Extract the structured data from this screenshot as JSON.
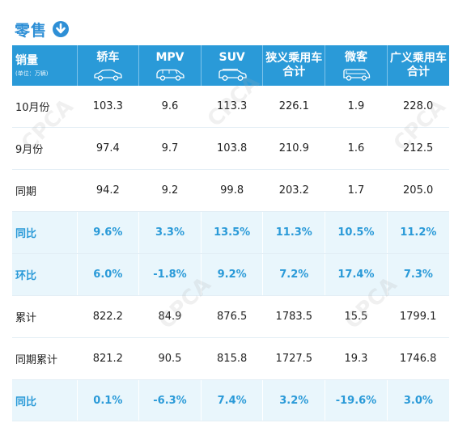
{
  "title": "零售",
  "table": {
    "header": {
      "label_main": "销量",
      "label_sub": "(单位：万辆)",
      "columns": [
        {
          "line1": "轿车",
          "line2": "",
          "icon": "sedan-icon"
        },
        {
          "line1": "MPV",
          "line2": "",
          "icon": "mpv-icon"
        },
        {
          "line1": "SUV",
          "line2": "",
          "icon": "suv-icon"
        },
        {
          "line1": "狭义乘用车",
          "line2": "合计",
          "icon": ""
        },
        {
          "line1": "微客",
          "line2": "",
          "icon": "minivan-icon"
        },
        {
          "line1": "广义乘用车",
          "line2": "合计",
          "icon": ""
        }
      ]
    },
    "rows": [
      {
        "label": "10月份",
        "values": [
          "103.3",
          "9.6",
          "113.3",
          "226.1",
          "1.9",
          "228.0"
        ],
        "highlight": false
      },
      {
        "label": "9月份",
        "values": [
          "97.4",
          "9.7",
          "103.8",
          "210.9",
          "1.6",
          "212.5"
        ],
        "highlight": false
      },
      {
        "label": "同期",
        "values": [
          "94.2",
          "9.2",
          "99.8",
          "203.2",
          "1.7",
          "205.0"
        ],
        "highlight": false
      },
      {
        "label": "同比",
        "values": [
          "9.6%",
          "3.3%",
          "13.5%",
          "11.3%",
          "10.5%",
          "11.2%"
        ],
        "highlight": true
      },
      {
        "label": "环比",
        "values": [
          "6.0%",
          "-1.8%",
          "9.2%",
          "7.2%",
          "17.4%",
          "7.3%"
        ],
        "highlight": true
      },
      {
        "label": "累计",
        "values": [
          "822.2",
          "84.9",
          "876.5",
          "1783.5",
          "15.5",
          "1799.1"
        ],
        "highlight": false
      },
      {
        "label": "同期累计",
        "values": [
          "821.2",
          "90.5",
          "815.8",
          "1727.5",
          "19.3",
          "1746.8"
        ],
        "highlight": false
      },
      {
        "label": "同比",
        "values": [
          "0.1%",
          "-6.3%",
          "7.4%",
          "3.2%",
          "-19.6%",
          "3.0%"
        ],
        "highlight": true
      }
    ]
  },
  "colors": {
    "accent": "#2a9ad8",
    "highlight_bg": "#e9f6fc",
    "title": "#2e8fd6"
  },
  "watermark": "CPCA"
}
